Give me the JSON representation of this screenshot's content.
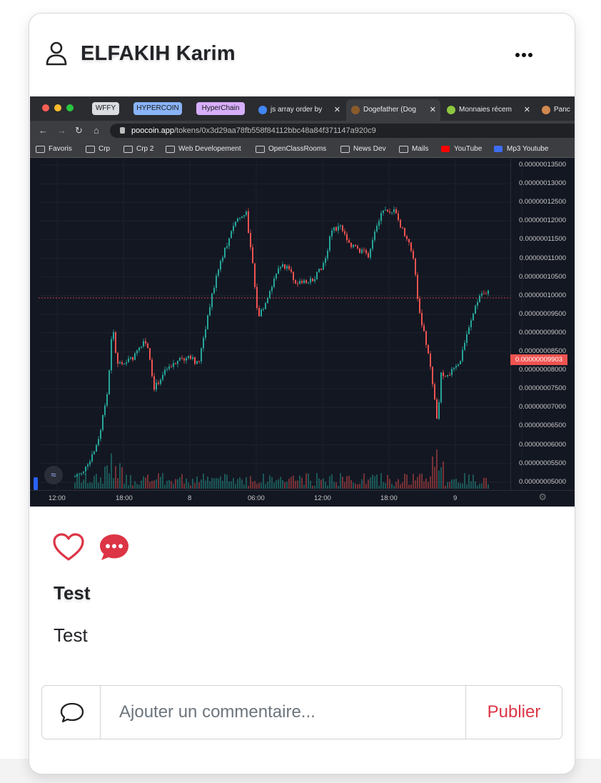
{
  "post": {
    "author": "ELFAKIH Karim",
    "title": "Test",
    "body": "Test"
  },
  "screenshot": {
    "browser_pills": [
      {
        "label": "WFFY",
        "color": "#d9dce1"
      },
      {
        "label": "HYPERCOIN",
        "color": "#8ab4f8"
      },
      {
        "label": "HyperChain",
        "color": "#d7aefb"
      }
    ],
    "tabs": [
      {
        "label": "js array order by",
        "favicon": "google-icon"
      },
      {
        "label": "Dogefather (Dog",
        "favicon": "poocoin-icon"
      },
      {
        "label": "Monnaies récem",
        "favicon": "coingecko-icon"
      },
      {
        "label": "Panc",
        "favicon": "pancake-icon"
      }
    ],
    "url_host": "poocoin.app",
    "url_path": "/tokens/0x3d29aa78fb558f84112bbc48a84f371147a920c9",
    "bookmarks": [
      "Favoris",
      "Crp",
      "Crp 2",
      "Web Developement",
      "OpenClassRooms",
      "News Dev",
      "Mails",
      "YouTube",
      "Mp3 Youtube"
    ],
    "price_ticks": [
      "0.00000013500",
      "0.00000013000",
      "0.00000012500",
      "0.00000012000",
      "0.00000011500",
      "0.00000011000",
      "0.00000010500",
      "0.00000010000",
      "0.00000009500",
      "0.00000009000",
      "0.00000008500",
      "0.00000008000",
      "0.00000007500",
      "0.00000007000",
      "0.00000006500",
      "0.00000006000",
      "0.00000005500",
      "0.00000005000"
    ],
    "last_price": "0.00000009903",
    "time_ticks": [
      "12:00",
      "18:00",
      "8",
      "06:00",
      "12:00",
      "18:00",
      "9"
    ],
    "colors": {
      "up": "#26a69a",
      "down": "#ef5350",
      "background": "#131722"
    }
  },
  "comment": {
    "placeholder": "Ajouter un commentaire...",
    "publish_label": "Publier"
  },
  "colors": {
    "accent": "#dc3545",
    "text": "#222428"
  }
}
